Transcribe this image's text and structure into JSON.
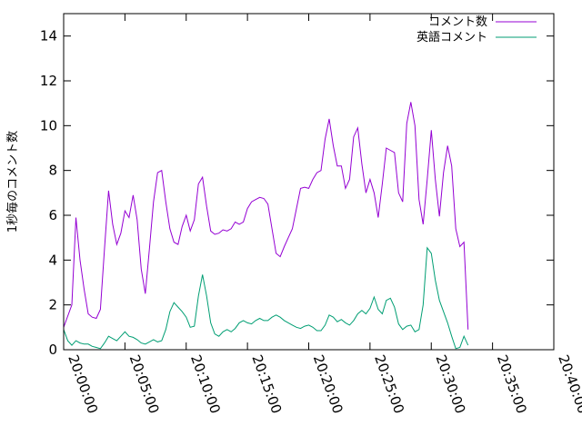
{
  "chart_data": {
    "type": "line",
    "title": "",
    "xlabel": "",
    "ylabel": "1秒毎のコメント数",
    "ylim": [
      0,
      15
    ],
    "yticks": [
      0,
      2,
      4,
      6,
      8,
      10,
      12,
      14
    ],
    "xticks": [
      "20:00:00",
      "20:05:00",
      "20:10:00",
      "20:15:00",
      "20:20:00",
      "20:25:00",
      "20:30:00",
      "20:35:00",
      "20:40:00"
    ],
    "legend_position": "top-right",
    "grid": false,
    "series": [
      {
        "name": "コメント数",
        "color": "#9400d3",
        "points": [
          [
            "20:00:00",
            1.0
          ],
          [
            "20:00:40",
            2.0
          ],
          [
            "20:01:00",
            5.9
          ],
          [
            "20:01:20",
            4.0
          ],
          [
            "20:01:40",
            2.7
          ],
          [
            "20:02:00",
            1.6
          ],
          [
            "20:02:20",
            1.45
          ],
          [
            "20:02:40",
            1.4
          ],
          [
            "20:03:00",
            1.8
          ],
          [
            "20:03:20",
            4.5
          ],
          [
            "20:03:40",
            7.1
          ],
          [
            "20:04:00",
            5.6
          ],
          [
            "20:04:20",
            4.7
          ],
          [
            "20:04:40",
            5.2
          ],
          [
            "20:05:00",
            6.2
          ],
          [
            "20:05:20",
            5.9
          ],
          [
            "20:05:40",
            6.9
          ],
          [
            "20:06:00",
            5.8
          ],
          [
            "20:06:20",
            3.6
          ],
          [
            "20:06:40",
            2.5
          ],
          [
            "20:07:00",
            4.5
          ],
          [
            "20:07:20",
            6.6
          ],
          [
            "20:07:40",
            7.9
          ],
          [
            "20:08:00",
            8.0
          ],
          [
            "20:08:20",
            6.6
          ],
          [
            "20:08:40",
            5.4
          ],
          [
            "20:09:00",
            4.8
          ],
          [
            "20:09:20",
            4.7
          ],
          [
            "20:09:40",
            5.5
          ],
          [
            "20:10:00",
            6.0
          ],
          [
            "20:10:20",
            5.3
          ],
          [
            "20:10:40",
            5.8
          ],
          [
            "20:11:00",
            7.4
          ],
          [
            "20:11:20",
            7.7
          ],
          [
            "20:11:40",
            6.4
          ],
          [
            "20:12:00",
            5.3
          ],
          [
            "20:12:20",
            5.15
          ],
          [
            "20:12:40",
            5.2
          ],
          [
            "20:13:00",
            5.35
          ],
          [
            "20:13:20",
            5.3
          ],
          [
            "20:13:40",
            5.4
          ],
          [
            "20:14:00",
            5.7
          ],
          [
            "20:14:20",
            5.6
          ],
          [
            "20:14:40",
            5.7
          ],
          [
            "20:15:00",
            6.3
          ],
          [
            "20:15:20",
            6.6
          ],
          [
            "20:15:40",
            6.7
          ],
          [
            "20:16:00",
            6.8
          ],
          [
            "20:16:20",
            6.75
          ],
          [
            "20:16:40",
            6.5
          ],
          [
            "20:17:00",
            5.4
          ],
          [
            "20:17:20",
            4.3
          ],
          [
            "20:17:40",
            4.15
          ],
          [
            "20:18:00",
            4.6
          ],
          [
            "20:18:20",
            5.0
          ],
          [
            "20:18:40",
            5.4
          ],
          [
            "20:19:00",
            6.3
          ],
          [
            "20:19:20",
            7.2
          ],
          [
            "20:19:40",
            7.25
          ],
          [
            "20:20:00",
            7.2
          ],
          [
            "20:20:20",
            7.6
          ],
          [
            "20:20:40",
            7.9
          ],
          [
            "20:21:00",
            8.0
          ],
          [
            "20:21:20",
            9.4
          ],
          [
            "20:21:40",
            10.3
          ],
          [
            "20:22:00",
            9.1
          ],
          [
            "20:22:20",
            8.2
          ],
          [
            "20:22:40",
            8.2
          ],
          [
            "20:23:00",
            7.2
          ],
          [
            "20:23:20",
            7.6
          ],
          [
            "20:23:40",
            9.5
          ],
          [
            "20:24:00",
            9.9
          ],
          [
            "20:24:20",
            8.3
          ],
          [
            "20:24:40",
            7.0
          ],
          [
            "20:25:00",
            7.6
          ],
          [
            "20:25:20",
            7.0
          ],
          [
            "20:25:40",
            5.9
          ],
          [
            "20:26:00",
            7.4
          ],
          [
            "20:26:20",
            9.0
          ],
          [
            "20:26:40",
            8.9
          ],
          [
            "20:27:00",
            8.8
          ],
          [
            "20:27:20",
            7.0
          ],
          [
            "20:27:40",
            6.6
          ],
          [
            "20:28:00",
            10.1
          ],
          [
            "20:28:20",
            11.05
          ],
          [
            "20:28:40",
            10.0
          ],
          [
            "20:29:00",
            6.7
          ],
          [
            "20:29:20",
            5.6
          ],
          [
            "20:29:40",
            7.6
          ],
          [
            "20:30:00",
            9.8
          ],
          [
            "20:30:20",
            7.6
          ],
          [
            "20:30:40",
            5.95
          ],
          [
            "20:31:00",
            7.9
          ],
          [
            "20:31:20",
            9.1
          ],
          [
            "20:31:40",
            8.2
          ],
          [
            "20:32:00",
            5.4
          ],
          [
            "20:32:20",
            4.6
          ],
          [
            "20:32:40",
            4.8
          ],
          [
            "20:33:00",
            0.9
          ]
        ]
      },
      {
        "name": "英語コメント",
        "color": "#009e73",
        "points": [
          [
            "20:00:00",
            0.9
          ],
          [
            "20:00:20",
            0.4
          ],
          [
            "20:00:40",
            0.2
          ],
          [
            "20:01:00",
            0.4
          ],
          [
            "20:01:20",
            0.3
          ],
          [
            "20:01:40",
            0.25
          ],
          [
            "20:02:00",
            0.25
          ],
          [
            "20:02:20",
            0.15
          ],
          [
            "20:02:40",
            0.1
          ],
          [
            "20:03:00",
            0.05
          ],
          [
            "20:03:20",
            0.3
          ],
          [
            "20:03:40",
            0.6
          ],
          [
            "20:04:00",
            0.5
          ],
          [
            "20:04:20",
            0.4
          ],
          [
            "20:04:40",
            0.6
          ],
          [
            "20:05:00",
            0.8
          ],
          [
            "20:05:20",
            0.6
          ],
          [
            "20:05:40",
            0.55
          ],
          [
            "20:06:00",
            0.45
          ],
          [
            "20:06:20",
            0.3
          ],
          [
            "20:06:40",
            0.25
          ],
          [
            "20:07:00",
            0.35
          ],
          [
            "20:07:20",
            0.45
          ],
          [
            "20:07:40",
            0.35
          ],
          [
            "20:08:00",
            0.4
          ],
          [
            "20:08:20",
            0.9
          ],
          [
            "20:08:40",
            1.7
          ],
          [
            "20:09:00",
            2.1
          ],
          [
            "20:09:20",
            1.9
          ],
          [
            "20:09:40",
            1.7
          ],
          [
            "20:10:00",
            1.45
          ],
          [
            "20:10:20",
            1.0
          ],
          [
            "20:10:40",
            1.05
          ],
          [
            "20:11:00",
            2.4
          ],
          [
            "20:11:20",
            3.35
          ],
          [
            "20:11:40",
            2.4
          ],
          [
            "20:12:00",
            1.2
          ],
          [
            "20:12:20",
            0.7
          ],
          [
            "20:12:40",
            0.6
          ],
          [
            "20:13:00",
            0.8
          ],
          [
            "20:13:20",
            0.9
          ],
          [
            "20:13:40",
            0.8
          ],
          [
            "20:14:00",
            0.95
          ],
          [
            "20:14:20",
            1.2
          ],
          [
            "20:14:40",
            1.3
          ],
          [
            "20:15:00",
            1.2
          ],
          [
            "20:15:20",
            1.15
          ],
          [
            "20:15:40",
            1.3
          ],
          [
            "20:16:00",
            1.4
          ],
          [
            "20:16:20",
            1.3
          ],
          [
            "20:16:40",
            1.3
          ],
          [
            "20:17:00",
            1.45
          ],
          [
            "20:17:20",
            1.55
          ],
          [
            "20:17:40",
            1.45
          ],
          [
            "20:18:00",
            1.3
          ],
          [
            "20:18:20",
            1.2
          ],
          [
            "20:18:40",
            1.1
          ],
          [
            "20:19:00",
            1.0
          ],
          [
            "20:19:20",
            0.95
          ],
          [
            "20:19:40",
            1.05
          ],
          [
            "20:20:00",
            1.1
          ],
          [
            "20:20:20",
            1.0
          ],
          [
            "20:20:40",
            0.85
          ],
          [
            "20:21:00",
            0.85
          ],
          [
            "20:21:20",
            1.1
          ],
          [
            "20:21:40",
            1.55
          ],
          [
            "20:22:00",
            1.45
          ],
          [
            "20:22:20",
            1.25
          ],
          [
            "20:22:40",
            1.35
          ],
          [
            "20:23:00",
            1.2
          ],
          [
            "20:23:20",
            1.1
          ],
          [
            "20:23:40",
            1.3
          ],
          [
            "20:24:00",
            1.6
          ],
          [
            "20:24:20",
            1.75
          ],
          [
            "20:24:40",
            1.6
          ],
          [
            "20:25:00",
            1.85
          ],
          [
            "20:25:20",
            2.35
          ],
          [
            "20:25:40",
            1.8
          ],
          [
            "20:26:00",
            1.6
          ],
          [
            "20:26:20",
            2.2
          ],
          [
            "20:26:40",
            2.3
          ],
          [
            "20:27:00",
            1.9
          ],
          [
            "20:27:20",
            1.15
          ],
          [
            "20:27:40",
            0.9
          ],
          [
            "20:28:00",
            1.05
          ],
          [
            "20:28:20",
            1.1
          ],
          [
            "20:28:40",
            0.8
          ],
          [
            "20:29:00",
            0.9
          ],
          [
            "20:29:20",
            2.0
          ],
          [
            "20:29:40",
            4.55
          ],
          [
            "20:30:00",
            4.3
          ],
          [
            "20:30:20",
            3.1
          ],
          [
            "20:30:40",
            2.2
          ],
          [
            "20:31:00",
            1.7
          ],
          [
            "20:31:20",
            1.2
          ],
          [
            "20:31:40",
            0.6
          ],
          [
            "20:32:00",
            0.05
          ],
          [
            "20:32:20",
            0.1
          ],
          [
            "20:32:40",
            0.6
          ],
          [
            "20:33:00",
            0.2
          ]
        ]
      }
    ]
  }
}
